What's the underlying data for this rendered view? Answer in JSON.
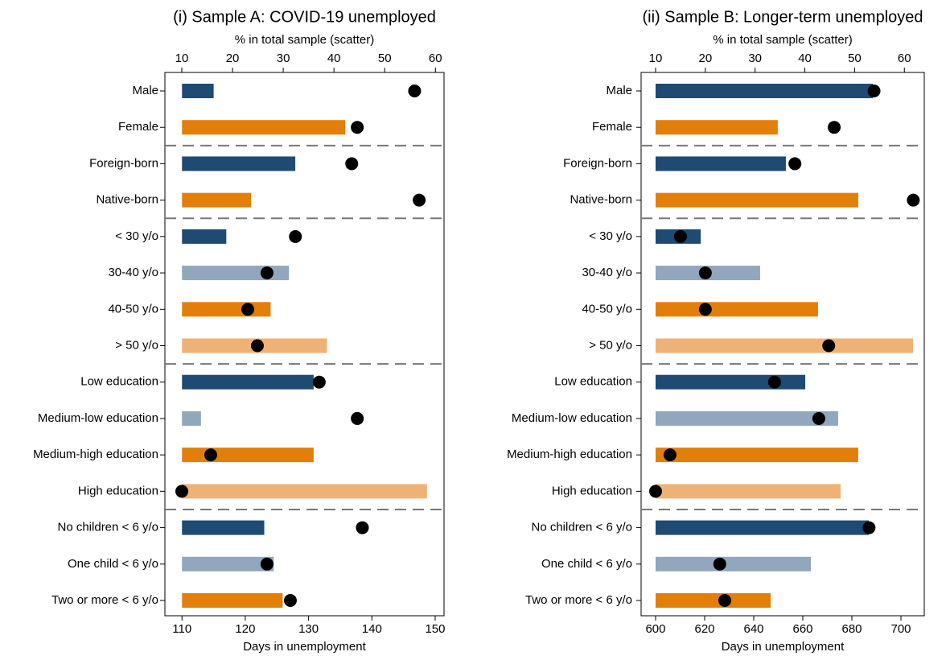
{
  "chart_data": [
    {
      "type": "bar",
      "title": "(i) Sample A: COVID-19 unemployed",
      "xlabel": "Days in unemployment",
      "x2label": "% in total sample (scatter)",
      "categories": [
        "Male",
        "Female",
        "Foreign-born",
        "Native-born",
        "< 30 y/o",
        "30-40 y/o",
        "40-50 y/o",
        "> 50 y/o",
        "Low education",
        "Medium-low education",
        "Medium-high education",
        "High education",
        "No children < 6 y/o",
        "One child < 6 y/o",
        "Two or more < 6 y/o"
      ],
      "values": [
        115,
        135.8,
        127.9,
        120.9,
        117,
        126.9,
        124,
        132.9,
        130.8,
        113,
        130.8,
        148.7,
        123,
        124.5,
        125.9
      ],
      "scatter_values": [
        55.9,
        44.6,
        43.5,
        56.8,
        32.4,
        26.8,
        23,
        24.9,
        37.1,
        44.6,
        15.7,
        10,
        45.6,
        26.8,
        31.4
      ],
      "colors": [
        "#1f4a73",
        "#e27f0b",
        "#1f4a73",
        "#e27f0b",
        "#1f4a73",
        "#92a6bd",
        "#e27f0b",
        "#efb276",
        "#1f4a73",
        "#92a6bd",
        "#e27f0b",
        "#efb276",
        "#1f4a73",
        "#92a6bd",
        "#e27f0b"
      ],
      "scatter_color": "#000000",
      "xlim": [
        107.3,
        151.4
      ],
      "xticks": [
        110,
        120,
        130,
        140,
        150
      ],
      "x2lim": [
        6.67,
        61.7
      ],
      "x2ticks": [
        10,
        20,
        30,
        40,
        50,
        60
      ]
    },
    {
      "type": "bar",
      "title": "(ii) Sample B: Longer-term unemployed",
      "xlabel": "Days in unemployment",
      "x2label": "% in total sample (scatter)",
      "categories": [
        "Male",
        "Female",
        "Foreign-born",
        "Native-born",
        "< 30 y/o",
        "30-40 y/o",
        "40-50 y/o",
        "> 50 y/o",
        "Low education",
        "Medium-low education",
        "Medium-high education",
        "High education",
        "No children < 6 y/o",
        "One child < 6 y/o",
        "Two or more < 6 y/o"
      ],
      "values": [
        688.5,
        649.8,
        653.1,
        682.6,
        618.4,
        642.6,
        666.2,
        704.9,
        661,
        674.4,
        682.6,
        675.4,
        686.9,
        663.3,
        646.9
      ],
      "scatter_values": [
        53.9,
        45.9,
        38,
        61.8,
        15,
        20,
        20,
        44.8,
        33.9,
        42.8,
        12.9,
        10,
        52.9,
        22.9,
        23.9
      ],
      "colors": [
        "#1f4a73",
        "#e27f0b",
        "#1f4a73",
        "#e27f0b",
        "#1f4a73",
        "#92a6bd",
        "#e27f0b",
        "#efb276",
        "#1f4a73",
        "#92a6bd",
        "#e27f0b",
        "#efb276",
        "#1f4a73",
        "#92a6bd",
        "#e27f0b"
      ],
      "scatter_color": "#000000",
      "xlim": [
        594.1,
        709.5
      ],
      "xticks": [
        600,
        620,
        640,
        660,
        680,
        700
      ],
      "x2lim": [
        7.09,
        64.0
      ],
      "x2ticks": [
        10,
        20,
        30,
        40,
        50,
        60
      ]
    }
  ]
}
